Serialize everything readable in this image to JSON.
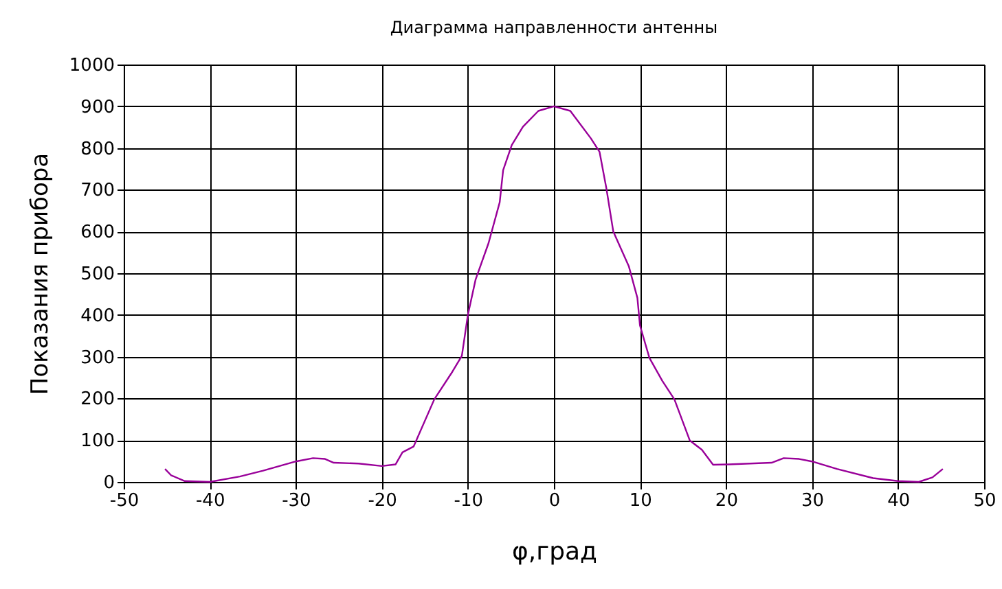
{
  "chart_data": {
    "type": "line",
    "title": "Диаграмма направленности антенны",
    "xlabel": "φ,град",
    "ylabel": "Показания прибора",
    "x": [
      -45.2,
      -44.5,
      -42.9,
      -40,
      -36.5,
      -33.8,
      -30,
      -28,
      -26.6,
      -25.6,
      -22.7,
      -20,
      -18.4,
      -17.6,
      -16.3,
      -13.9,
      -11.8,
      -10.7,
      -10,
      -9.1,
      -7.6,
      -6.3,
      -5.9,
      -4.9,
      -3.6,
      -1.8,
      0,
      1.9,
      4.3,
      5.3,
      6.1,
      6.9,
      8.7,
      9.7,
      10,
      11.1,
      12.6,
      14,
      15.8,
      17.2,
      18.5,
      20.3,
      25.3,
      26.7,
      28.5,
      30,
      32.9,
      37.1,
      40,
      42.4,
      44,
      45.2
    ],
    "series": [
      {
        "color": "#990099",
        "values": [
          31,
          16,
          2,
          0,
          13,
          27,
          49,
          57,
          55,
          46,
          44,
          38,
          42,
          71,
          85,
          198,
          264,
          302,
          400,
          485,
          572,
          670,
          747,
          807,
          851,
          889,
          900,
          889,
          823,
          791,
          703,
          600,
          517,
          441,
          375,
          297,
          242,
          198,
          99,
          77,
          41,
          42,
          46,
          57,
          55,
          49,
          31,
          9,
          2,
          0,
          11,
          31
        ]
      }
    ],
    "xlim": [
      -50,
      50
    ],
    "xticks": [
      -50,
      -40,
      -30,
      -20,
      -10,
      0,
      10,
      20,
      30,
      40,
      50
    ],
    "ylim": [
      0,
      1000
    ],
    "yticks": [
      0,
      100,
      200,
      300,
      400,
      500,
      600,
      700,
      800,
      900,
      1000
    ],
    "grid": true,
    "marker": "none",
    "line_style": "solid"
  }
}
